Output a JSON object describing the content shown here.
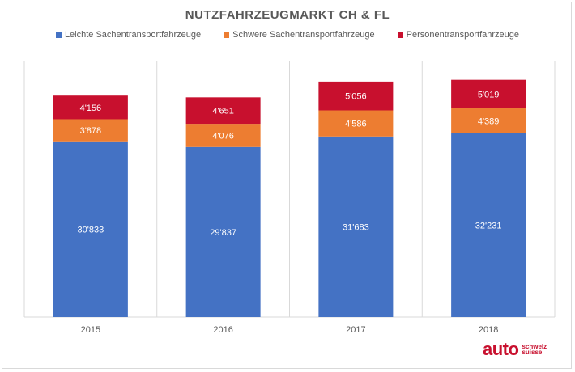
{
  "chart_data": {
    "type": "bar",
    "stacked": true,
    "title": "NUTZFAHRZEUGMARKT CH & FL",
    "categories": [
      "2015",
      "2016",
      "2017",
      "2018"
    ],
    "series": [
      {
        "name": "Leichte Sachentransportfahrzeuge",
        "color": "#4472c4",
        "values": [
          30833,
          29837,
          31683,
          32231
        ],
        "labels": [
          "30'833",
          "29'837",
          "31'683",
          "32'231"
        ]
      },
      {
        "name": "Schwere Sachentransportfahrzeuge",
        "color": "#ed7d31",
        "values": [
          3878,
          4076,
          4586,
          4389
        ],
        "labels": [
          "3'878",
          "4'076",
          "4'586",
          "4'389"
        ]
      },
      {
        "name": "Personentransportfahrzeuge",
        "color": "#c8102e",
        "values": [
          4156,
          4651,
          5056,
          5019
        ],
        "labels": [
          "4'156",
          "4'651",
          "5'056",
          "5'019"
        ]
      }
    ],
    "ylim": [
      0,
      45000
    ],
    "xlabel": "",
    "ylabel": "",
    "grid": "vertical separators",
    "legend": "top-center"
  },
  "logo": {
    "main": "auto",
    "line1": "schweiz",
    "line2": "suisse"
  }
}
